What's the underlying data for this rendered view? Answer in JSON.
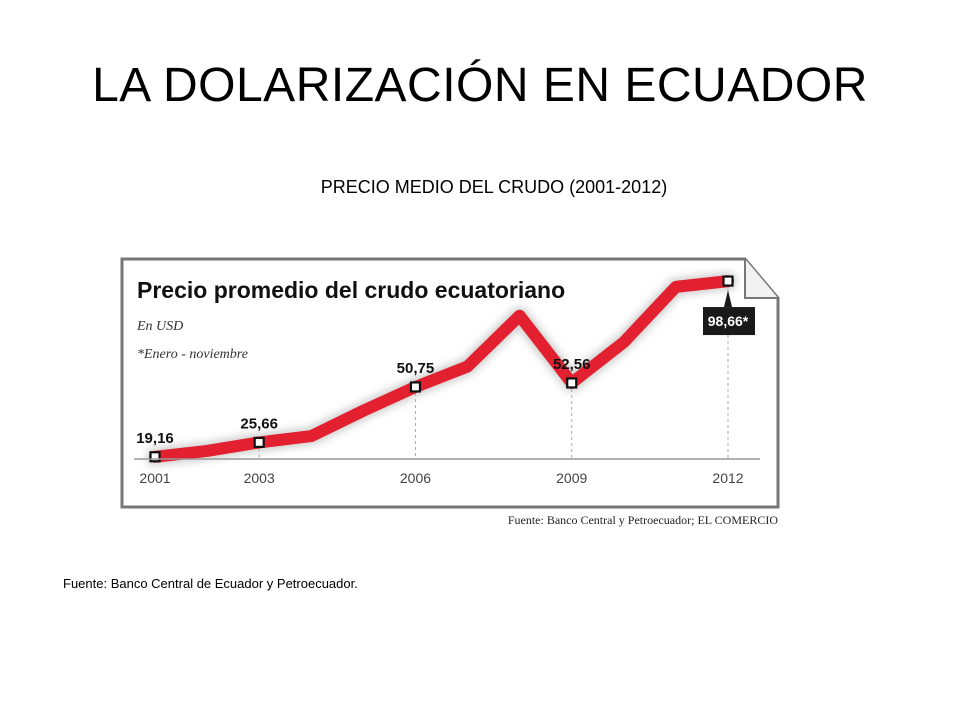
{
  "slide": {
    "title": "LA DOLARIZACIÓN EN ECUADOR",
    "subtitle": "PRECIO MEDIO DEL CRUDO (2001-2012)",
    "source": "Fuente: Banco Central de Ecuador y Petroecuador."
  },
  "chart_data": {
    "type": "line",
    "title": "Precio promedio del crudo ecuatoriano",
    "unit_note": "En USD",
    "footnote": "*Enero - noviembre",
    "source": "Fuente: Banco Central y Petroecuador; EL COMERCIO",
    "x_ticks": [
      2001,
      2003,
      2006,
      2009,
      2012
    ],
    "x_tick_labels": [
      "2001",
      "2003",
      "2006",
      "2009",
      "2012"
    ],
    "xlim": [
      2001,
      2012
    ],
    "ylim": [
      10,
      110
    ],
    "grid": false,
    "series": [
      {
        "color": "#e3202f",
        "x": [
          2001,
          2002,
          2003,
          2004,
          2005,
          2006,
          2007,
          2008,
          2009,
          2010,
          2011,
          2012
        ],
        "values": [
          19.16,
          21.8,
          25.66,
          28.5,
          40.0,
          50.75,
          60.0,
          83.0,
          52.56,
          71.0,
          96.0,
          98.66
        ]
      }
    ],
    "labeled_points": [
      {
        "x": 2001,
        "value": 19.16,
        "label": "19,16",
        "highlight": false
      },
      {
        "x": 2003,
        "value": 25.66,
        "label": "25,66",
        "highlight": false
      },
      {
        "x": 2006,
        "value": 50.75,
        "label": "50,75",
        "highlight": false
      },
      {
        "x": 2009,
        "value": 52.56,
        "label": "52,56",
        "highlight": false
      },
      {
        "x": 2012,
        "value": 98.66,
        "label": "98,66*",
        "highlight": true
      }
    ],
    "colors": {
      "line": "#e3202f",
      "highlight_box": "#1a1a1a",
      "highlight_text": "#ffffff",
      "frame": "#777777"
    }
  }
}
